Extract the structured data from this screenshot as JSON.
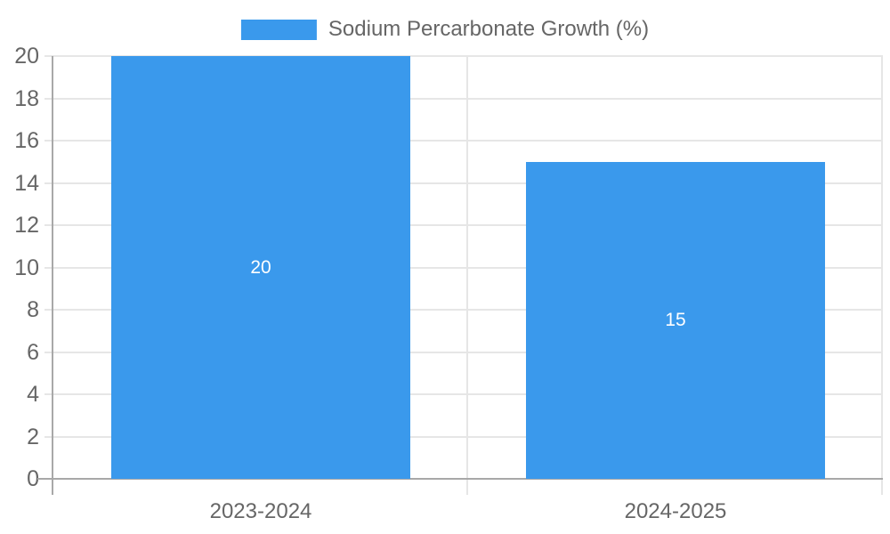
{
  "legend": {
    "label": "Sodium Percarbonate Growth (%)"
  },
  "chart_data": {
    "type": "bar",
    "title": "Sodium Percarbonate Growth (%)",
    "categories": [
      "2023-2024",
      "2024-2025"
    ],
    "values": [
      20,
      15
    ],
    "data_labels": [
      "20",
      "15"
    ],
    "series": [
      {
        "name": "Sodium Percarbonate Growth (%)",
        "values": [
          20,
          15
        ]
      }
    ],
    "xlabel": "",
    "ylabel": "",
    "ylim": [
      0,
      20
    ],
    "ytick_step": 2,
    "ytick_labels": [
      "0",
      "2",
      "4",
      "6",
      "8",
      "10",
      "12",
      "14",
      "16",
      "18",
      "20"
    ],
    "grid": true,
    "legend_position": "top-center",
    "bar_color": "#3A99EC",
    "data_label_color": "#FFFFFF",
    "axis_text_color": "#666666",
    "gridline_color": "#E6E6E6",
    "axis_line_color": "#A8A8A8"
  }
}
